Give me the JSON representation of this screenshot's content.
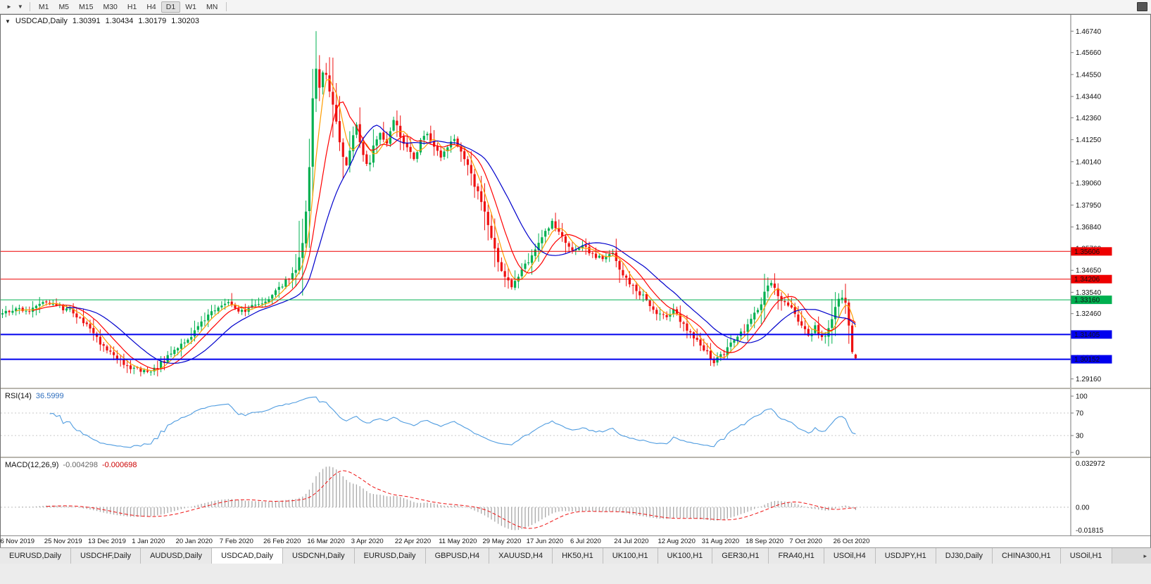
{
  "toolbar": {
    "timeframes": [
      "M1",
      "M5",
      "M15",
      "M30",
      "H1",
      "H4",
      "D1",
      "W1",
      "MN"
    ],
    "active": "D1"
  },
  "chart": {
    "header": {
      "symbol": "USDCAD,Daily",
      "open": "1.30391",
      "high": "1.30434",
      "low": "1.30179",
      "close": "1.30203"
    }
  },
  "chart_data": {
    "type": "candlestick",
    "symbol": "USDCAD",
    "timeframe": "Daily",
    "title": "USDCAD,Daily",
    "last_candle": {
      "open": 1.30391,
      "high": 1.30434,
      "low": 1.30179,
      "close": 1.30203
    },
    "extreme_high": 1.4674,
    "y_range": [
      1.29,
      1.47
    ],
    "y_axis_ticks": [
      "1.46740",
      "1.45660",
      "1.44550",
      "1.43440",
      "1.42360",
      "1.41250",
      "1.40140",
      "1.39060",
      "1.37950",
      "1.36840",
      "1.35760",
      "1.34650",
      "1.33540",
      "1.32460",
      "1.31350",
      "1.30240",
      "1.29160"
    ],
    "x_labels": [
      "6 Nov 2019",
      "25 Nov 2019",
      "13 Dec 2019",
      "1 Jan 2020",
      "20 Jan 2020",
      "7 Feb 2020",
      "26 Feb 2020",
      "16 Mar 2020",
      "3 Apr 2020",
      "22 Apr 2020",
      "11 May 2020",
      "29 May 2020",
      "17 Jun 2020",
      "6 Jul 2020",
      "24 Jul 2020",
      "12 Aug 2020",
      "31 Aug 2020",
      "18 Sep 2020",
      "7 Oct 2020",
      "26 Oct 2020"
    ],
    "x_label_step": 13,
    "total_candles": 254,
    "price_keypoints": [
      [
        0,
        1.324
      ],
      [
        4,
        1.3275
      ],
      [
        8,
        1.3255
      ],
      [
        12,
        1.331
      ],
      [
        16,
        1.329
      ],
      [
        20,
        1.326
      ],
      [
        24,
        1.321
      ],
      [
        26,
        1.316
      ],
      [
        30,
        1.308
      ],
      [
        34,
        1.302
      ],
      [
        38,
        1.2975
      ],
      [
        41,
        1.2958
      ],
      [
        45,
        1.2962
      ],
      [
        48,
        1.301
      ],
      [
        52,
        1.307
      ],
      [
        56,
        1.313
      ],
      [
        60,
        1.322
      ],
      [
        64,
        1.3285
      ],
      [
        67,
        1.33
      ],
      [
        70,
        1.3245
      ],
      [
        73,
        1.327
      ],
      [
        76,
        1.33
      ],
      [
        79,
        1.333
      ],
      [
        82,
        1.338
      ],
      [
        85,
        1.342
      ],
      [
        87,
        1.347
      ],
      [
        89,
        1.36
      ],
      [
        90,
        1.375
      ],
      [
        91,
        1.398
      ],
      [
        92,
        1.433
      ],
      [
        93,
        1.449
      ],
      [
        94,
        1.44
      ],
      [
        95,
        1.446
      ],
      [
        96,
        1.445
      ],
      [
        97,
        1.438
      ],
      [
        98,
        1.43
      ],
      [
        99,
        1.423
      ],
      [
        100,
        1.412
      ],
      [
        101,
        1.405
      ],
      [
        102,
        1.399
      ],
      [
        103,
        1.406
      ],
      [
        104,
        1.414
      ],
      [
        105,
        1.419
      ],
      [
        106,
        1.412
      ],
      [
        107,
        1.406
      ],
      [
        108,
        1.399
      ],
      [
        109,
        1.402
      ],
      [
        110,
        1.409
      ],
      [
        112,
        1.416
      ],
      [
        114,
        1.411
      ],
      [
        116,
        1.423
      ],
      [
        118,
        1.415
      ],
      [
        120,
        1.408
      ],
      [
        122,
        1.403
      ],
      [
        124,
        1.412
      ],
      [
        126,
        1.416
      ],
      [
        128,
        1.41
      ],
      [
        130,
        1.404
      ],
      [
        132,
        1.409
      ],
      [
        134,
        1.412
      ],
      [
        136,
        1.406
      ],
      [
        138,
        1.399
      ],
      [
        140,
        1.39
      ],
      [
        143,
        1.377
      ],
      [
        146,
        1.357
      ],
      [
        148,
        1.345
      ],
      [
        151,
        1.338
      ],
      [
        154,
        1.347
      ],
      [
        157,
        1.354
      ],
      [
        160,
        1.364
      ],
      [
        163,
        1.371
      ],
      [
        166,
        1.364
      ],
      [
        169,
        1.357
      ],
      [
        172,
        1.3595
      ],
      [
        175,
        1.3545
      ],
      [
        178,
        1.352
      ],
      [
        181,
        1.3555
      ],
      [
        184,
        1.344
      ],
      [
        187,
        1.339
      ],
      [
        190,
        1.333
      ],
      [
        193,
        1.327
      ],
      [
        196,
        1.323
      ],
      [
        199,
        1.3255
      ],
      [
        202,
        1.3185
      ],
      [
        205,
        1.3125
      ],
      [
        208,
        1.307
      ],
      [
        211,
        1.3
      ],
      [
        214,
        1.305
      ],
      [
        217,
        1.311
      ],
      [
        220,
        1.316
      ],
      [
        223,
        1.324
      ],
      [
        225,
        1.329
      ],
      [
        227,
        1.34
      ],
      [
        229,
        1.338
      ],
      [
        231,
        1.331
      ],
      [
        233,
        1.329
      ],
      [
        235,
        1.324
      ],
      [
        237,
        1.318
      ],
      [
        239,
        1.313
      ],
      [
        241,
        1.3175
      ],
      [
        243,
        1.313
      ],
      [
        245,
        1.316
      ],
      [
        246,
        1.323
      ],
      [
        248,
        1.333
      ],
      [
        249,
        1.3335
      ],
      [
        250,
        1.33
      ],
      [
        251,
        1.319
      ],
      [
        252,
        1.3045
      ],
      [
        253,
        1.302
      ]
    ],
    "candle_colors": {
      "up": "#00b050",
      "down": "#ee1111"
    },
    "moving_averages": [
      {
        "period": 5,
        "color": "#ff9d00"
      },
      {
        "period": 10,
        "color": "#ff0000"
      },
      {
        "period": 20,
        "color": "#0000cc"
      }
    ],
    "horizontal_lines": [
      {
        "price": 1.35606,
        "label": "1.35606",
        "color": "#ee0000",
        "width": 1
      },
      {
        "price": 1.34206,
        "label": "1.34206",
        "color": "#ee0000",
        "width": 1
      },
      {
        "price": 1.3316,
        "label": "1.33160",
        "color": "#00b050",
        "width": 1
      },
      {
        "price": 1.31405,
        "label": "1.31405",
        "color": "#0000ee",
        "width": 2
      },
      {
        "price": 1.30152,
        "label": "1.30152",
        "color": "#0000ee",
        "width": 2
      }
    ],
    "rsi": {
      "label_name": "RSI(14)",
      "label_value": "36.5999",
      "period": 14,
      "levels": [
        100,
        70,
        30,
        0
      ],
      "level_lines": [
        70,
        30
      ],
      "color": "#4f9ce0"
    },
    "macd": {
      "label_name": "MACD(12,26,9)",
      "label_value_main": "-0.004298",
      "label_value_signal": "-0.000698",
      "fast": 12,
      "slow": 26,
      "signal": 9,
      "scale_top_label": "0.032972",
      "scale_zero_label": "0.00",
      "scale_bottom_label": "-0.01815",
      "scale_top": 0.032972,
      "scale_bottom": -0.01815,
      "histogram_color": "#a8a8a8",
      "signal_color": "#ee1111"
    }
  },
  "tabs": {
    "items": [
      "EURUSD,Daily",
      "USDCHF,Daily",
      "AUDUSD,Daily",
      "USDCAD,Daily",
      "USDCNH,Daily",
      "EURUSD,Daily",
      "GBPUSD,H4",
      "XAUUSD,H4",
      "HK50,H1",
      "UK100,H1",
      "UK100,H1",
      "GER30,H1",
      "FRA40,H1",
      "USOil,H4",
      "USDJPY,H1",
      "DJ30,Daily",
      "CHINA300,H1",
      "USOil,H1"
    ],
    "active_index": 3,
    "scroll_right_icon": "▸"
  }
}
